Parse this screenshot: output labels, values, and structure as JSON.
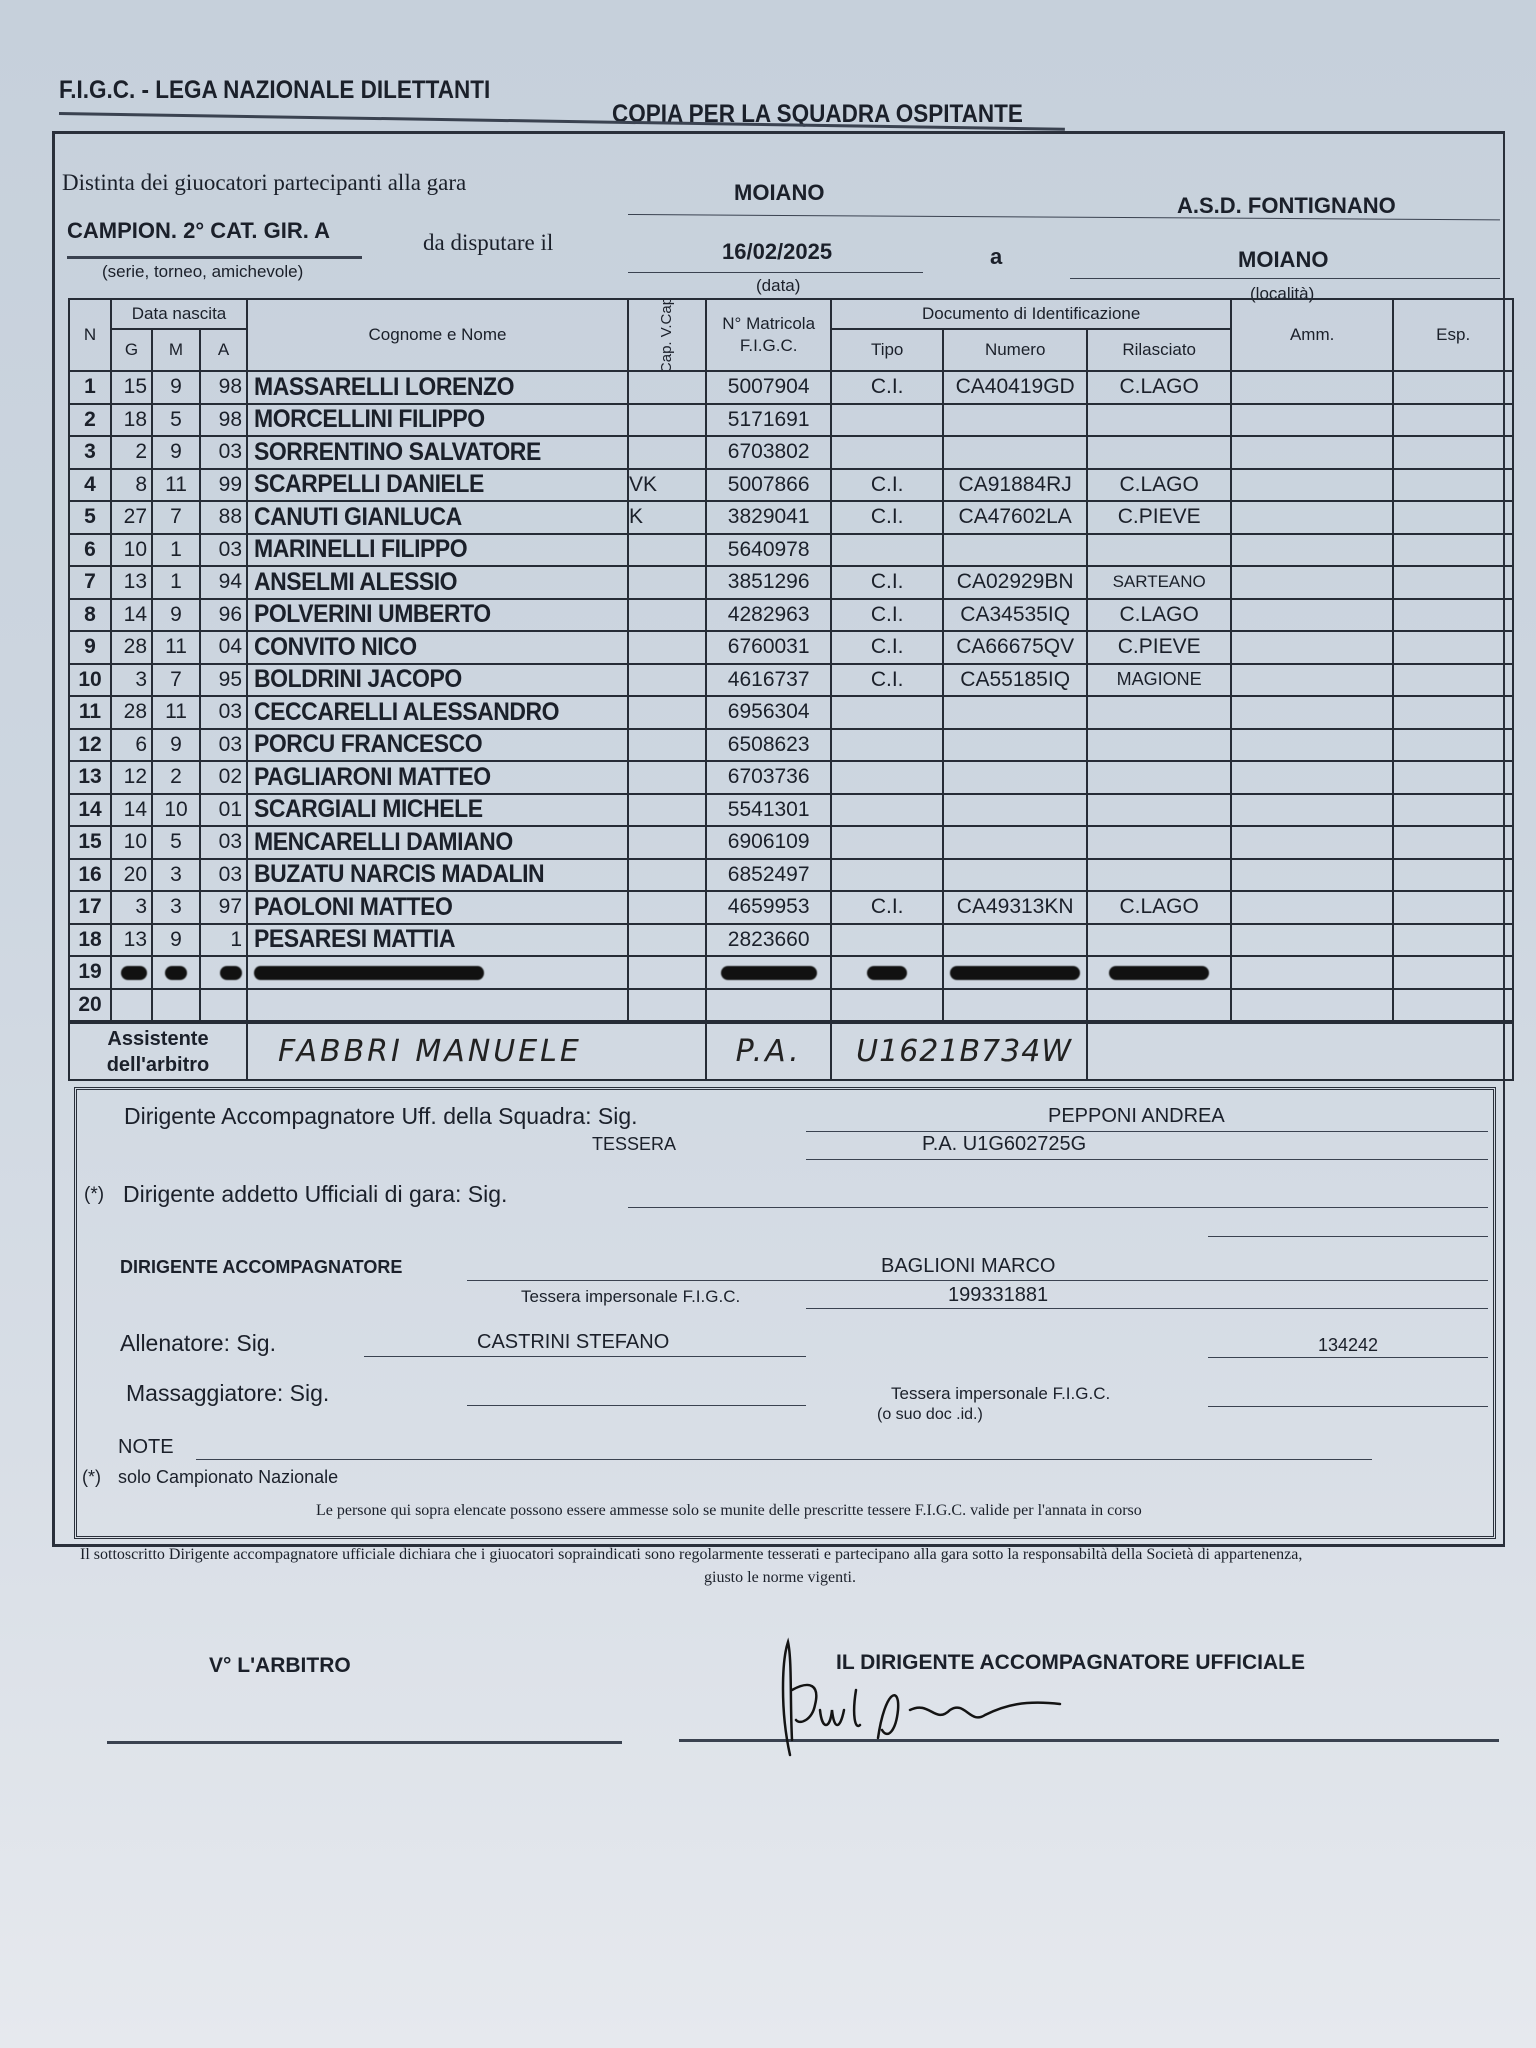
{
  "header": {
    "org": "F.I.G.C. - LEGA NAZIONALE DILETTANTI",
    "copy": "COPIA PER LA SQUADRA OSPITANTE"
  },
  "match": {
    "distinta_label": "Distinta dei giuocatori partecipanti alla gara",
    "home_team": "MOIANO",
    "away_team": "A.S.D. FONTIGNANO",
    "competition": "CAMPION. 2° CAT. GIR. A",
    "competition_hint": "(serie, torneo, amichevole)",
    "da_disputare": "da disputare il",
    "date": "16/02/2025",
    "date_hint": "(data)",
    "a_label": "a",
    "location": "MOIANO",
    "location_hint": "(località)"
  },
  "table": {
    "headers": {
      "n": "N",
      "data_nascita": "Data nascita",
      "g": "G",
      "m": "M",
      "a": "A",
      "name": "Cognome e Nome",
      "cap": "Cap. V.Cap",
      "matricola": "N° Matricola F.I.G.C.",
      "documento": "Documento di Identificazione",
      "tipo": "Tipo",
      "numero": "Numero",
      "rilasciato": "Rilasciato",
      "amm": "Amm.",
      "esp": "Esp."
    },
    "rows": [
      {
        "n": "1",
        "g": "15",
        "m": "9",
        "a": "98",
        "name": "MASSARELLI  LORENZO",
        "cap": "",
        "matricola": "5007904",
        "tipo": "C.I.",
        "numero": "CA40419GD",
        "rilasciato": "C.LAGO"
      },
      {
        "n": "2",
        "g": "18",
        "m": "5",
        "a": "98",
        "name": "MORCELLINI FILIPPO",
        "cap": "",
        "matricola": "5171691",
        "tipo": "",
        "numero": "",
        "rilasciato": ""
      },
      {
        "n": "3",
        "g": "2",
        "m": "9",
        "a": "03",
        "name": "SORRENTINO SALVATORE",
        "cap": "",
        "matricola": "6703802",
        "tipo": "",
        "numero": "",
        "rilasciato": ""
      },
      {
        "n": "4",
        "g": "8",
        "m": "11",
        "a": "99",
        "name": "SCARPELLI  DANIELE",
        "cap": "VK",
        "matricola": "5007866",
        "tipo": "C.I.",
        "numero": "CA91884RJ",
        "rilasciato": "C.LAGO"
      },
      {
        "n": "5",
        "g": "27",
        "m": "7",
        "a": "88",
        "name": "CANUTI GIANLUCA",
        "cap": "K",
        "matricola": "3829041",
        "tipo": "C.I.",
        "numero": "CA47602LA",
        "rilasciato": "C.PIEVE"
      },
      {
        "n": "6",
        "g": "10",
        "m": "1",
        "a": "03",
        "name": "MARINELLI  FILIPPO",
        "cap": "",
        "matricola": "5640978",
        "tipo": "",
        "numero": "",
        "rilasciato": ""
      },
      {
        "n": "7",
        "g": "13",
        "m": "1",
        "a": "94",
        "name": "ANSELMI ALESSIO",
        "cap": "",
        "matricola": "3851296",
        "tipo": "C.I.",
        "numero": "CA02929BN",
        "rilasciato": "SARTEANO"
      },
      {
        "n": "8",
        "g": "14",
        "m": "9",
        "a": "96",
        "name": "POLVERINI  UMBERTO",
        "cap": "",
        "matricola": "4282963",
        "tipo": "C.I.",
        "numero": "CA34535IQ",
        "rilasciato": "C.LAGO"
      },
      {
        "n": "9",
        "g": "28",
        "m": "11",
        "a": "04",
        "name": "CONVITO  NICO",
        "cap": "",
        "matricola": "6760031",
        "tipo": "C.I.",
        "numero": "CA66675QV",
        "rilasciato": "C.PIEVE"
      },
      {
        "n": "10",
        "g": "3",
        "m": "7",
        "a": "95",
        "name": "BOLDRINI  JACOPO",
        "cap": "",
        "matricola": "4616737",
        "tipo": "C.I.",
        "numero": "CA55185IQ",
        "rilasciato": "MAGIONE"
      },
      {
        "n": "11",
        "g": "28",
        "m": "11",
        "a": "03",
        "name": "CECCARELLI ALESSANDRO",
        "cap": "",
        "matricola": "6956304",
        "tipo": "",
        "numero": "",
        "rilasciato": ""
      },
      {
        "n": "12",
        "g": "6",
        "m": "9",
        "a": "03",
        "name": "PORCU  FRANCESCO",
        "cap": "",
        "matricola": "6508623",
        "tipo": "",
        "numero": "",
        "rilasciato": ""
      },
      {
        "n": "13",
        "g": "12",
        "m": "2",
        "a": "02",
        "name": "PAGLIARONI  MATTEO",
        "cap": "",
        "matricola": "6703736",
        "tipo": "",
        "numero": "",
        "rilasciato": ""
      },
      {
        "n": "14",
        "g": "14",
        "m": "10",
        "a": "01",
        "name": "SCARGIALI MICHELE",
        "cap": "",
        "matricola": "5541301",
        "tipo": "",
        "numero": "",
        "rilasciato": ""
      },
      {
        "n": "15",
        "g": "10",
        "m": "5",
        "a": "03",
        "name": "MENCARELLI  DAMIANO",
        "cap": "",
        "matricola": "6906109",
        "tipo": "",
        "numero": "",
        "rilasciato": ""
      },
      {
        "n": "16",
        "g": "20",
        "m": "3",
        "a": "03",
        "name": "BUZATU NARCIS MADALIN",
        "cap": "",
        "matricola": "6852497",
        "tipo": "",
        "numero": "",
        "rilasciato": ""
      },
      {
        "n": "17",
        "g": "3",
        "m": "3",
        "a": "97",
        "name": "PAOLONI  MATTEO",
        "cap": "",
        "matricola": "4659953",
        "tipo": "C.I.",
        "numero": "CA49313KN",
        "rilasciato": "C.LAGO"
      },
      {
        "n": "18",
        "g": "13",
        "m": "9",
        "a": "1",
        "name": "PESARESI  MATTIA",
        "cap": "",
        "matricola": "2823660",
        "tipo": "",
        "numero": "",
        "rilasciato": ""
      },
      {
        "n": "19",
        "scribbled": true
      },
      {
        "n": "20"
      }
    ]
  },
  "assistant": {
    "label_1": "Assistente",
    "label_2": "dell'arbitro",
    "name": "FABBRI MANUELE",
    "tipo": "P.A.",
    "numero": "U1621B734W"
  },
  "officials": {
    "dirigente_uff_label": "Dirigente Accompagnatore Uff. della Squadra: Sig.",
    "dirigente_uff_name": "PEPPONI ANDREA",
    "tessera_label": "TESSERA",
    "tessera_value": "P.A. U1G602725G",
    "addetto_star": "(*)",
    "addetto_label": "Dirigente addetto Ufficiali di gara: Sig.",
    "dirigente_acc_label": "DIRIGENTE ACCOMPAGNATORE",
    "dirigente_acc_name": "BAGLIONI  MARCO",
    "tessera_imp_label": "Tessera impersonale F.I.G.C.",
    "tessera_imp_value": "199331881",
    "allenatore_label": "Allenatore: Sig.",
    "allenatore_name": "CASTRINI STEFANO",
    "allenatore_code": "134242",
    "massaggiatore_label": "Massaggiatore: Sig.",
    "massaggiatore_tessera_label": "Tessera impersonale F.I.G.C.",
    "massaggiatore_tessera_hint": "(o suo doc .id.)",
    "note_label": "NOTE",
    "solo_star": "(*)",
    "solo_label": "solo Campionato Nazionale",
    "notice": "Le persone qui sopra elencate possono essere ammesse solo se munite delle prescritte tessere F.I.G.C. valide per l'annata in corso"
  },
  "footer": {
    "declaration_1": "Il sottoscritto Dirigente accompagnatore ufficiale dichiara che i giuocatori sopraindicati sono regolarmente tesserati e partecipano alla gara sotto la responsabiltà della Società di appartenenza,",
    "declaration_2": "giusto le norme vigenti.",
    "arbitro_label": "V° L'ARBITRO",
    "dirigente_label": "IL DIRIGENTE ACCOMPAGNATORE UFFICIALE"
  }
}
